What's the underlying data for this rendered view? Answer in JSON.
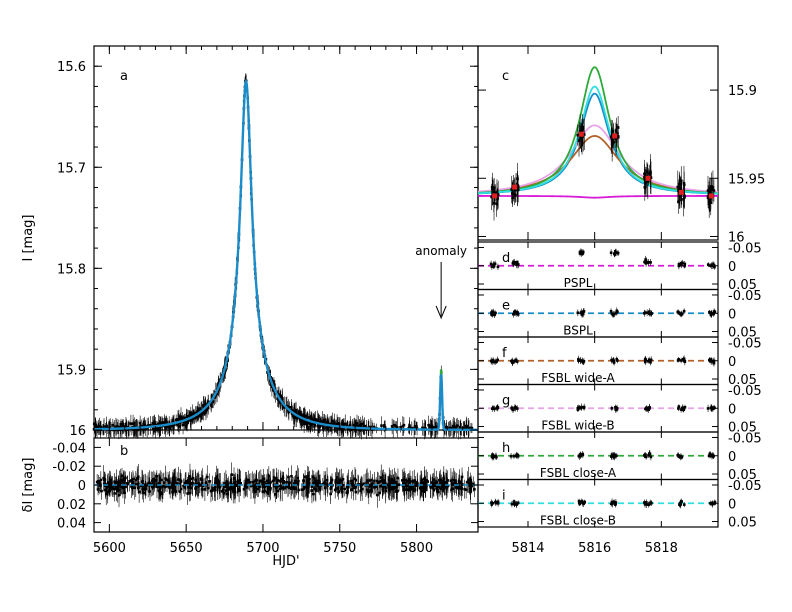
{
  "chart_data": [
    {
      "panel": "a",
      "type": "line",
      "xlabel": "HJD'",
      "ylabel": "I [mag]",
      "xlim": [
        5590,
        5840
      ],
      "ylim": [
        15.96,
        15.58
      ],
      "x_ticks": [
        "5600",
        "5650",
        "5700",
        "5750",
        "5800"
      ],
      "y_ticks": [
        "15.6",
        "15.7",
        "15.8",
        "15.9",
        "16"
      ],
      "y_tick_values": [
        15.6,
        15.7,
        15.8,
        15.9,
        15.96
      ],
      "annotation": "anomaly",
      "anomaly_x": 5816,
      "model": {
        "t0": 5689,
        "u0": 0.1,
        "tE": 35,
        "base": 15.96,
        "peak": 15.615,
        "anomaly_peak": 15.9
      },
      "series": [
        {
          "color": "#1a8cc9",
          "style": "solid"
        }
      ]
    },
    {
      "panel": "b",
      "type": "scatter",
      "ylabel": "δI [mag]",
      "ylim": [
        0.05,
        -0.05
      ],
      "y_ticks": [
        "-0.04",
        "-0.02",
        "0",
        "0.02",
        "0.04"
      ],
      "y_tick_values": [
        -0.04,
        -0.02,
        0,
        0.02,
        0.04
      ]
    },
    {
      "panel": "c",
      "type": "line",
      "xlim": [
        5812.5,
        5819.7
      ],
      "ylim": [
        15.985,
        15.875
      ],
      "y_ticks": [
        "15.9",
        "15.95",
        "16"
      ],
      "y_tick_values": [
        15.9,
        15.95,
        15.983
      ],
      "binned_points": [
        {
          "x": 5813.0,
          "y": 15.96
        },
        {
          "x": 5813.6,
          "y": 15.955
        },
        {
          "x": 5815.6,
          "y": 15.925
        },
        {
          "x": 5816.6,
          "y": 15.926
        },
        {
          "x": 5817.6,
          "y": 15.95
        },
        {
          "x": 5818.6,
          "y": 15.958
        },
        {
          "x": 5819.5,
          "y": 15.96
        }
      ],
      "series": [
        {
          "model": "PSPL",
          "color": "#d81bd8",
          "peak": 15.961
        },
        {
          "model": "BSPL",
          "color": "#1a8cc9",
          "peak": 15.902
        },
        {
          "model": "FSBL wide-A",
          "color": "#b3622a",
          "peak": 15.926
        },
        {
          "model": "FSBL wide-B",
          "color": "#e8a4e8",
          "peak": 15.92
        },
        {
          "model": "FSBL close-A",
          "color": "#2eaa3a",
          "peak": 15.887
        },
        {
          "model": "FSBL close-B",
          "color": "#2ee0e0",
          "peak": 15.898
        }
      ]
    },
    {
      "panel": "d-i",
      "type": "scatter",
      "ylim": [
        0.065,
        -0.065
      ],
      "x_ticks": [
        "5814",
        "5816",
        "5818"
      ],
      "x_tick_values": [
        5814,
        5816,
        5818
      ],
      "y_ticks": [
        "-0.05",
        "0",
        "0.05"
      ],
      "y_tick_values": [
        -0.05,
        0,
        0.05
      ]
    }
  ],
  "residual_panels": [
    {
      "letter": "d",
      "label": "PSPL",
      "color": "#d81bd8"
    },
    {
      "letter": "e",
      "label": "BSPL",
      "color": "#1a8cc9"
    },
    {
      "letter": "f",
      "label": "FSBL  wide-A",
      "color": "#b3622a"
    },
    {
      "letter": "g",
      "label": "FSBL  wide-B",
      "color": "#e8a4e8"
    },
    {
      "letter": "h",
      "label": "FSBL  close-A",
      "color": "#2eaa3a"
    },
    {
      "letter": "i",
      "label": "FSBL  close-B",
      "color": "#2ee0e0"
    }
  ]
}
